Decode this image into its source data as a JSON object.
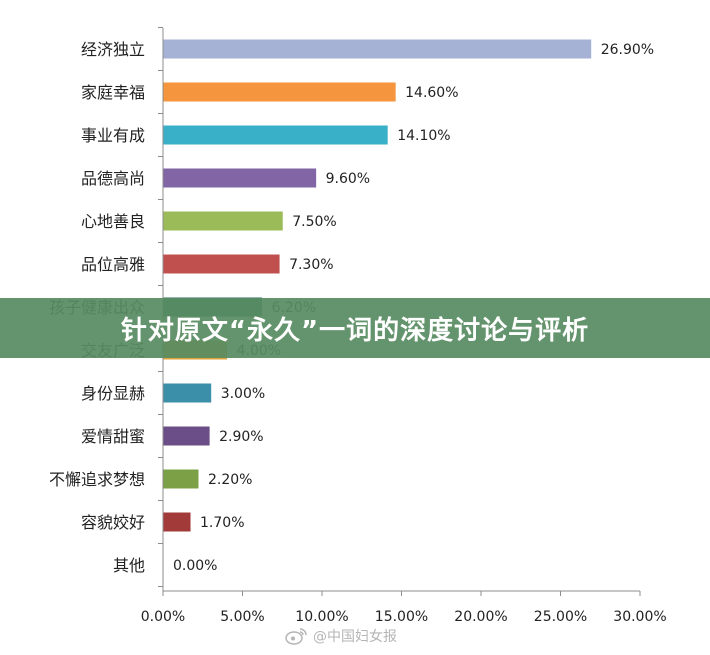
{
  "banner": {
    "title": "针对原文“永久”一词的深度讨论与评析"
  },
  "watermark": {
    "icon": "weibo-icon",
    "text": "@中国妇女报"
  },
  "chart_data": {
    "type": "bar",
    "orientation": "horizontal",
    "categories": [
      "经济独立",
      "家庭幸福",
      "事业有成",
      "品德高尚",
      "心地善良",
      "品位高雅",
      "孩子健康出众",
      "交友广泛",
      "身份显赫",
      "爱情甜蜜",
      "不懈追求梦想",
      "容貌姣好",
      "其他"
    ],
    "values": [
      26.9,
      14.6,
      14.1,
      9.6,
      7.5,
      7.3,
      6.2,
      4.0,
      3.0,
      2.9,
      2.2,
      1.7,
      0.0
    ],
    "value_labels": [
      "26.90%",
      "14.60%",
      "14.10%",
      "9.60%",
      "7.50%",
      "7.30%",
      "6.20%",
      "4.00%",
      "3.00%",
      "2.90%",
      "2.20%",
      "1.70%",
      "0.00%"
    ],
    "colors": [
      "#A5B2D6",
      "#F5953E",
      "#3AAFC8",
      "#8165A4",
      "#9BBB59",
      "#C0504D",
      "#2C6E6B",
      "#E0A23A",
      "#3B8FA8",
      "#6B4E87",
      "#7BA045",
      "#A33A3A",
      "#cccccc"
    ],
    "x_ticks": [
      "0.00%",
      "5.00%",
      "10.00%",
      "15.00%",
      "20.00%",
      "25.00%",
      "30.00%"
    ],
    "xlim": [
      0,
      30
    ],
    "grid": false,
    "title": "",
    "xlabel": "",
    "ylabel": ""
  }
}
